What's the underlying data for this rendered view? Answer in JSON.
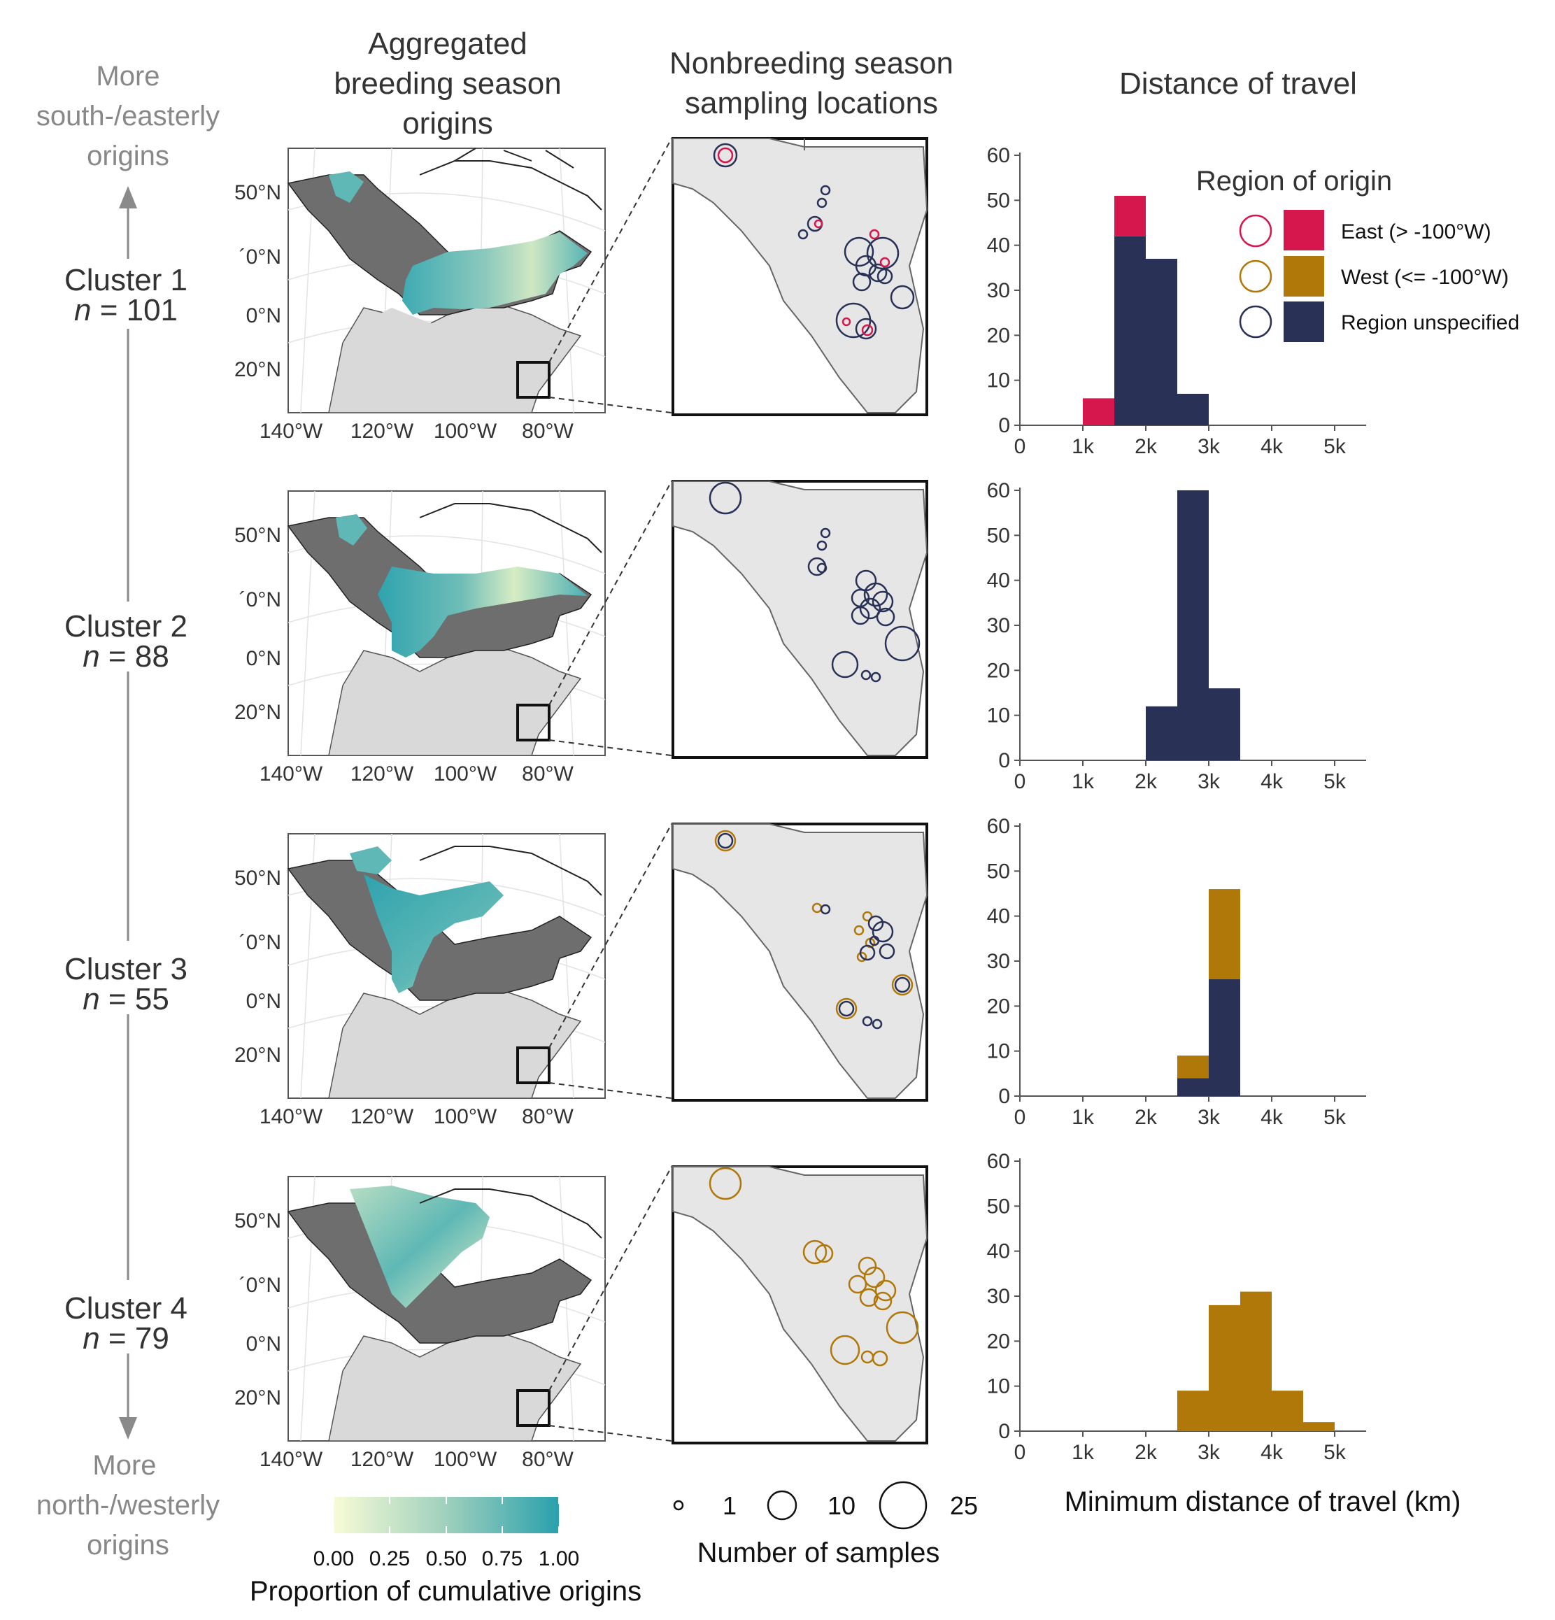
{
  "titles": {
    "origins": [
      "Aggregated",
      "breeding season",
      "origins"
    ],
    "locations": [
      "Nonbreeding season",
      "sampling locations"
    ],
    "distance": "Distance of travel"
  },
  "gradient_labels": {
    "top": [
      "More",
      "south-/easterly",
      "origins"
    ],
    "bottom": [
      "More",
      "north-/westerly",
      "origins"
    ]
  },
  "clusters": [
    {
      "name": "Cluster 1",
      "n_label": "n",
      "n_value": "= 101"
    },
    {
      "name": "Cluster 2",
      "n_label": "n",
      "n_value": "= 88"
    },
    {
      "name": "Cluster 3",
      "n_label": "n",
      "n_value": "= 55"
    },
    {
      "name": "Cluster 4",
      "n_label": "n",
      "n_value": "= 79"
    }
  ],
  "map_axes": {
    "lat_ticks": [
      "50°N",
      "´0°N",
      "0°N",
      "20°N"
    ],
    "lon_ticks": [
      "140°W",
      "120°W",
      "100°W",
      "80°W"
    ]
  },
  "colorbar": {
    "title": "Proportion of cumulative origins",
    "ticks": [
      "0.00",
      "0.25",
      "0.50",
      "0.75",
      "1.00"
    ],
    "low_color": "#f7fbd6",
    "high_color": "#2aa1ad"
  },
  "size_legend": {
    "title": "Number of samples",
    "values": [
      "1",
      "10",
      "25"
    ]
  },
  "region_legend": {
    "title": "Region of origin",
    "items": [
      {
        "label": "East (> -100°W)",
        "color": "#d5174e"
      },
      {
        "label": "West (<= -100°W)",
        "color": "#b07709"
      },
      {
        "label": "Region unspecified",
        "color": "#2a3157"
      }
    ]
  },
  "chart_data": {
    "type": "bar",
    "xlabel": "Minimum distance of travel (km)",
    "x_tick_labels": [
      "0",
      "1k",
      "2k",
      "3k",
      "4k",
      "5k"
    ],
    "x_ticks": [
      0,
      1000,
      2000,
      3000,
      4000,
      5000
    ],
    "xlim": [
      0,
      5500
    ],
    "y_ticks": [
      0,
      10,
      20,
      30,
      40,
      50,
      60
    ],
    "ylim": [
      0,
      60
    ],
    "bin_width": 500,
    "stacked": true,
    "legend_position": "top-right",
    "panels": [
      {
        "cluster": "Cluster 1",
        "series": [
          {
            "name": "Region unspecified",
            "bins": [
              [
                1500,
                42
              ],
              [
                2000,
                37
              ],
              [
                2500,
                7
              ]
            ]
          },
          {
            "name": "East (> -100°W)",
            "bins": [
              [
                1000,
                6
              ],
              [
                1500,
                9
              ]
            ]
          }
        ]
      },
      {
        "cluster": "Cluster 2",
        "series": [
          {
            "name": "Region unspecified",
            "bins": [
              [
                2000,
                12
              ],
              [
                2500,
                60
              ],
              [
                3000,
                16
              ]
            ]
          }
        ]
      },
      {
        "cluster": "Cluster 3",
        "series": [
          {
            "name": "Region unspecified",
            "bins": [
              [
                2500,
                4
              ],
              [
                3000,
                26
              ]
            ]
          },
          {
            "name": "West (<= -100°W)",
            "bins": [
              [
                2500,
                5
              ],
              [
                3000,
                20
              ]
            ]
          }
        ]
      },
      {
        "cluster": "Cluster 4",
        "series": [
          {
            "name": "West (<= -100°W)",
            "bins": [
              [
                2500,
                9
              ],
              [
                3000,
                28
              ],
              [
                3500,
                31
              ],
              [
                4000,
                9
              ],
              [
                4500,
                2
              ]
            ]
          }
        ]
      }
    ]
  }
}
